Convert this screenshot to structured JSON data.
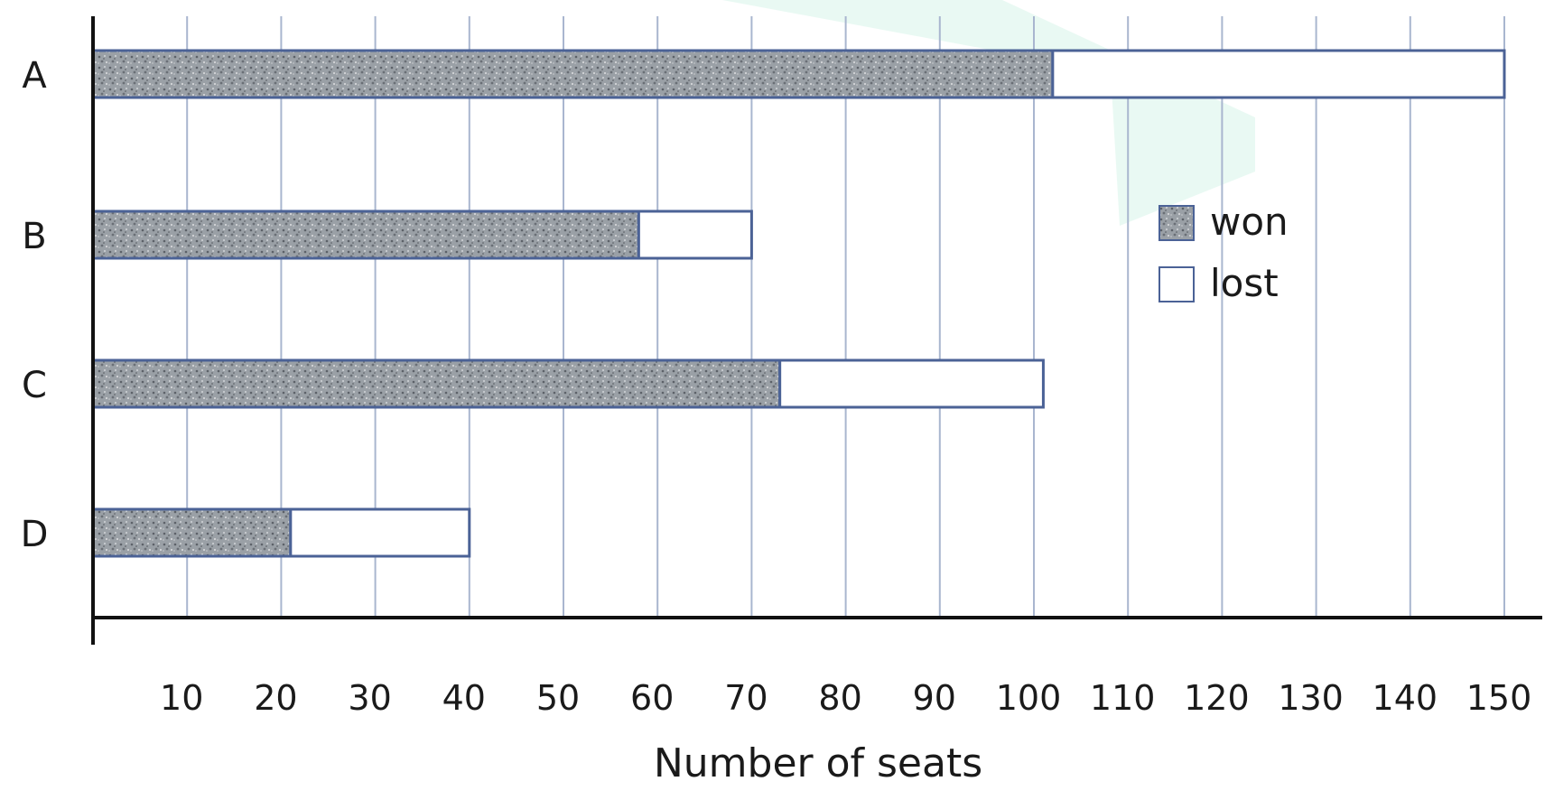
{
  "chart_data": {
    "type": "bar",
    "orientation": "horizontal",
    "stacked": true,
    "categories": [
      "A",
      "B",
      "C",
      "D"
    ],
    "series": [
      {
        "name": "won",
        "values": [
          102,
          58,
          73,
          21
        ],
        "color": "#8a9096",
        "pattern": "speckled-grey"
      },
      {
        "name": "lost",
        "values": [
          48,
          12,
          28,
          19
        ],
        "color": "#ffffff"
      }
    ],
    "totals": [
      150,
      70,
      101,
      40
    ],
    "xlabel": "Number of seats",
    "ylabel": "",
    "xlim": [
      0,
      150
    ],
    "xticks": [
      10,
      20,
      30,
      40,
      50,
      60,
      70,
      80,
      90,
      100,
      110,
      120,
      130,
      140,
      150
    ],
    "grid": "vertical",
    "gridColor": "#a9b6cf",
    "barBorderColor": "#4b6296",
    "legend": {
      "position": "right",
      "entries": [
        "won",
        "lost"
      ]
    }
  }
}
